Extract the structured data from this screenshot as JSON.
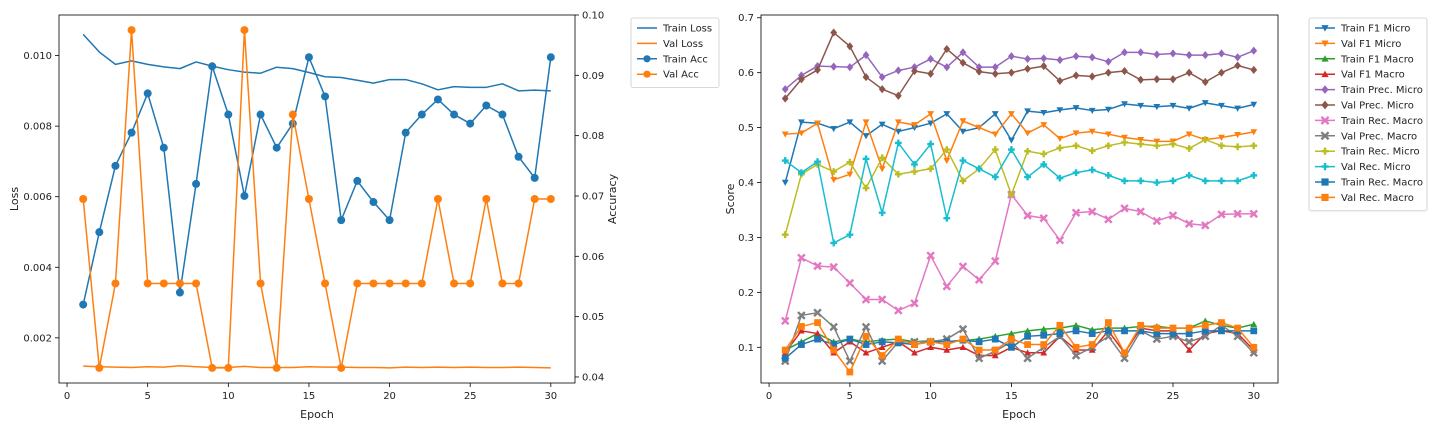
{
  "colors": {
    "tab_blue": "#1f77b4",
    "tab_orange": "#ff7f0e",
    "tab_green": "#2ca02c",
    "tab_red": "#d62728",
    "tab_purple": "#9467bd",
    "tab_brown": "#8c564b",
    "tab_pink": "#e377c2",
    "tab_gray": "#7f7f7f",
    "tab_olive": "#bcbd22",
    "tab_cyan": "#17becf"
  },
  "chart_data": [
    {
      "type": "line",
      "xlabel": "Epoch",
      "ylabel": "Loss",
      "y2label": "Accuracy",
      "xlim": [
        -0.5,
        31.5
      ],
      "ylim": [
        0.00072,
        0.01115
      ],
      "y2lim": [
        0.039,
        0.1
      ],
      "xticks": [
        0,
        5,
        10,
        15,
        20,
        25,
        30
      ],
      "yticks": [
        0.002,
        0.004,
        0.006,
        0.008,
        0.01
      ],
      "ytick_labels": [
        "0.002",
        "0.004",
        "0.006",
        "0.008",
        "0.010"
      ],
      "y2ticks": [
        0.04,
        0.05,
        0.06,
        0.07,
        0.08,
        0.09,
        0.1
      ],
      "y2tick_labels": [
        "0.04",
        "0.05",
        "0.06",
        "0.07",
        "0.08",
        "0.09",
        "0.10"
      ],
      "legend_position": "outside-right-top",
      "x": [
        1,
        2,
        3,
        4,
        5,
        6,
        7,
        8,
        9,
        10,
        11,
        12,
        13,
        14,
        15,
        16,
        17,
        18,
        19,
        20,
        21,
        22,
        23,
        24,
        25,
        26,
        27,
        28,
        29,
        30
      ],
      "series": [
        {
          "name": "Train Loss",
          "axis": "left",
          "color": "#1f77b4",
          "marker": "none",
          "values": [
            0.0106,
            0.0101,
            0.00975,
            0.00985,
            0.00975,
            0.00968,
            0.00963,
            0.00982,
            0.0097,
            0.0096,
            0.00953,
            0.0095,
            0.00967,
            0.00963,
            0.00952,
            0.0094,
            0.00938,
            0.0093,
            0.00922,
            0.00932,
            0.00932,
            0.0092,
            0.00903,
            0.00912,
            0.0091,
            0.0091,
            0.0092,
            0.009,
            0.00902,
            0.009
          ]
        },
        {
          "name": "Val Loss",
          "axis": "left",
          "color": "#ff7f0e",
          "marker": "none",
          "values": [
            0.0012,
            0.00118,
            0.00117,
            0.00116,
            0.00118,
            0.00117,
            0.00121,
            0.00118,
            0.00116,
            0.00116,
            0.00119,
            0.00116,
            0.00116,
            0.00116,
            0.00118,
            0.00117,
            0.00117,
            0.00116,
            0.00116,
            0.00115,
            0.00117,
            0.00116,
            0.00117,
            0.00116,
            0.00117,
            0.00116,
            0.00116,
            0.00117,
            0.00116,
            0.00115
          ]
        },
        {
          "name": "Train Acc",
          "axis": "right",
          "color": "#1f77b4",
          "marker": "circle",
          "values": [
            0.052,
            0.064,
            0.075,
            0.0805,
            0.087,
            0.078,
            0.054,
            0.072,
            0.0915,
            0.0835,
            0.07,
            0.0835,
            0.078,
            0.082,
            0.093,
            0.0865,
            0.066,
            0.0725,
            0.069,
            0.066,
            0.0805,
            0.0835,
            0.086,
            0.0835,
            0.082,
            0.085,
            0.0835,
            0.0765,
            0.073,
            0.093
          ]
        },
        {
          "name": "Val Acc",
          "axis": "right",
          "color": "#ff7f0e",
          "marker": "circle",
          "values": [
            0.0695,
            0.0415,
            0.0555,
            0.0975,
            0.0555,
            0.0555,
            0.0555,
            0.0555,
            0.0415,
            0.0415,
            0.0975,
            0.0555,
            0.0415,
            0.0835,
            0.0695,
            0.0555,
            0.0415,
            0.0555,
            0.0555,
            0.0555,
            0.0555,
            0.0555,
            0.0695,
            0.0555,
            0.0555,
            0.0695,
            0.0555,
            0.0555,
            0.0695,
            0.0695
          ]
        }
      ]
    },
    {
      "type": "line",
      "xlabel": "Epoch",
      "ylabel": "Score",
      "xlim": [
        -0.5,
        31.5
      ],
      "ylim": [
        0.035,
        0.705
      ],
      "xticks": [
        0,
        5,
        10,
        15,
        20,
        25,
        30
      ],
      "yticks": [
        0.1,
        0.2,
        0.3,
        0.4,
        0.5,
        0.6,
        0.7
      ],
      "ytick_labels": [
        "0.1",
        "0.2",
        "0.3",
        "0.4",
        "0.5",
        "0.6",
        "0.7"
      ],
      "legend_position": "outside-right-top",
      "x": [
        1,
        2,
        3,
        4,
        5,
        6,
        7,
        8,
        9,
        10,
        11,
        12,
        13,
        14,
        15,
        16,
        17,
        18,
        19,
        20,
        21,
        22,
        23,
        24,
        25,
        26,
        27,
        28,
        29,
        30
      ],
      "series": [
        {
          "name": "Train F1 Micro",
          "color": "#1f77b4",
          "marker": "tri-down",
          "values": [
            0.4,
            0.51,
            0.508,
            0.498,
            0.51,
            0.485,
            0.506,
            0.493,
            0.5,
            0.508,
            0.525,
            0.493,
            0.5,
            0.525,
            0.477,
            0.53,
            0.527,
            0.532,
            0.536,
            0.531,
            0.533,
            0.543,
            0.54,
            0.538,
            0.54,
            0.535,
            0.545,
            0.54,
            0.535,
            0.542
          ]
        },
        {
          "name": "Val F1 Micro",
          "color": "#ff7f0e",
          "marker": "tri-down",
          "values": [
            0.488,
            0.49,
            0.508,
            0.405,
            0.415,
            0.51,
            0.425,
            0.51,
            0.505,
            0.525,
            0.44,
            0.512,
            0.5,
            0.488,
            0.525,
            0.49,
            0.505,
            0.48,
            0.49,
            0.493,
            0.488,
            0.482,
            0.478,
            0.475,
            0.475,
            0.488,
            0.478,
            0.482,
            0.487,
            0.492
          ]
        },
        {
          "name": "Train F1 Macro",
          "color": "#2ca02c",
          "marker": "tri-up",
          "values": [
            0.095,
            0.11,
            0.125,
            0.11,
            0.115,
            0.11,
            0.113,
            0.115,
            0.11,
            0.112,
            0.11,
            0.112,
            0.115,
            0.12,
            0.125,
            0.13,
            0.133,
            0.135,
            0.14,
            0.132,
            0.135,
            0.135,
            0.138,
            0.138,
            0.135,
            0.135,
            0.148,
            0.14,
            0.135,
            0.142
          ]
        },
        {
          "name": "Val F1 Macro",
          "color": "#d62728",
          "marker": "tri-up",
          "values": [
            0.09,
            0.13,
            0.125,
            0.09,
            0.11,
            0.09,
            0.1,
            0.11,
            0.09,
            0.1,
            0.095,
            0.1,
            0.085,
            0.085,
            0.1,
            0.09,
            0.09,
            0.12,
            0.095,
            0.095,
            0.13,
            0.09,
            0.135,
            0.13,
            0.13,
            0.095,
            0.125,
            0.13,
            0.125,
            0.095
          ]
        },
        {
          "name": "Train Prec. Micro",
          "color": "#9467bd",
          "marker": "diamond",
          "values": [
            0.57,
            0.595,
            0.612,
            0.611,
            0.61,
            0.632,
            0.592,
            0.604,
            0.61,
            0.625,
            0.61,
            0.637,
            0.61,
            0.61,
            0.63,
            0.625,
            0.626,
            0.623,
            0.63,
            0.628,
            0.62,
            0.637,
            0.637,
            0.633,
            0.635,
            0.632,
            0.632,
            0.635,
            0.628,
            0.64
          ]
        },
        {
          "name": "Val Prec. Micro",
          "color": "#8c564b",
          "marker": "diamond",
          "values": [
            0.553,
            0.588,
            0.605,
            0.673,
            0.648,
            0.592,
            0.57,
            0.558,
            0.603,
            0.598,
            0.643,
            0.618,
            0.602,
            0.598,
            0.6,
            0.607,
            0.612,
            0.585,
            0.595,
            0.593,
            0.6,
            0.603,
            0.587,
            0.588,
            0.588,
            0.6,
            0.583,
            0.6,
            0.613,
            0.605
          ]
        },
        {
          "name": "Train Rec. Macro",
          "color": "#e377c2",
          "marker": "x",
          "values": [
            0.148,
            0.263,
            0.248,
            0.246,
            0.217,
            0.187,
            0.187,
            0.167,
            0.18,
            0.267,
            0.211,
            0.247,
            0.223,
            0.257,
            0.378,
            0.34,
            0.335,
            0.295,
            0.345,
            0.347,
            0.333,
            0.353,
            0.347,
            0.33,
            0.34,
            0.325,
            0.322,
            0.342,
            0.343,
            0.343
          ]
        },
        {
          "name": "Val Prec. Macro",
          "color": "#7f7f7f",
          "marker": "x",
          "values": [
            0.075,
            0.158,
            0.163,
            0.137,
            0.075,
            0.137,
            0.075,
            0.11,
            0.11,
            0.11,
            0.115,
            0.133,
            0.08,
            0.093,
            0.11,
            0.08,
            0.1,
            0.12,
            0.085,
            0.1,
            0.12,
            0.08,
            0.13,
            0.115,
            0.12,
            0.11,
            0.12,
            0.14,
            0.12,
            0.09
          ]
        },
        {
          "name": "Train Rec. Micro",
          "color": "#bcbd22",
          "marker": "plus",
          "values": [
            0.305,
            0.415,
            0.433,
            0.42,
            0.437,
            0.39,
            0.445,
            0.415,
            0.42,
            0.425,
            0.46,
            0.403,
            0.425,
            0.46,
            0.378,
            0.457,
            0.452,
            0.463,
            0.467,
            0.458,
            0.467,
            0.473,
            0.47,
            0.467,
            0.47,
            0.462,
            0.478,
            0.467,
            0.465,
            0.467
          ]
        },
        {
          "name": "Val Rec. Micro",
          "color": "#17becf",
          "marker": "plus",
          "values": [
            0.44,
            0.418,
            0.438,
            0.29,
            0.305,
            0.443,
            0.345,
            0.472,
            0.433,
            0.47,
            0.335,
            0.44,
            0.425,
            0.41,
            0.46,
            0.41,
            0.433,
            0.408,
            0.418,
            0.423,
            0.413,
            0.403,
            0.403,
            0.4,
            0.403,
            0.413,
            0.403,
            0.403,
            0.403,
            0.413
          ]
        },
        {
          "name": "Train Rec. Macro",
          "color": "#1f77b4",
          "marker": "square",
          "values": [
            0.08,
            0.105,
            0.115,
            0.105,
            0.115,
            0.105,
            0.11,
            0.108,
            0.105,
            0.11,
            0.11,
            0.113,
            0.11,
            0.115,
            0.1,
            0.12,
            0.122,
            0.125,
            0.13,
            0.125,
            0.13,
            0.13,
            0.13,
            0.125,
            0.125,
            0.125,
            0.13,
            0.13,
            0.13,
            0.13
          ]
        },
        {
          "name": "Val Rec. Macro",
          "color": "#ff7f0e",
          "marker": "square",
          "values": [
            0.095,
            0.138,
            0.145,
            0.095,
            0.055,
            0.12,
            0.085,
            0.115,
            0.105,
            0.11,
            0.105,
            0.115,
            0.095,
            0.095,
            0.115,
            0.105,
            0.105,
            0.14,
            0.1,
            0.105,
            0.145,
            0.09,
            0.14,
            0.135,
            0.135,
            0.135,
            0.14,
            0.145,
            0.135,
            0.1
          ]
        }
      ]
    }
  ]
}
